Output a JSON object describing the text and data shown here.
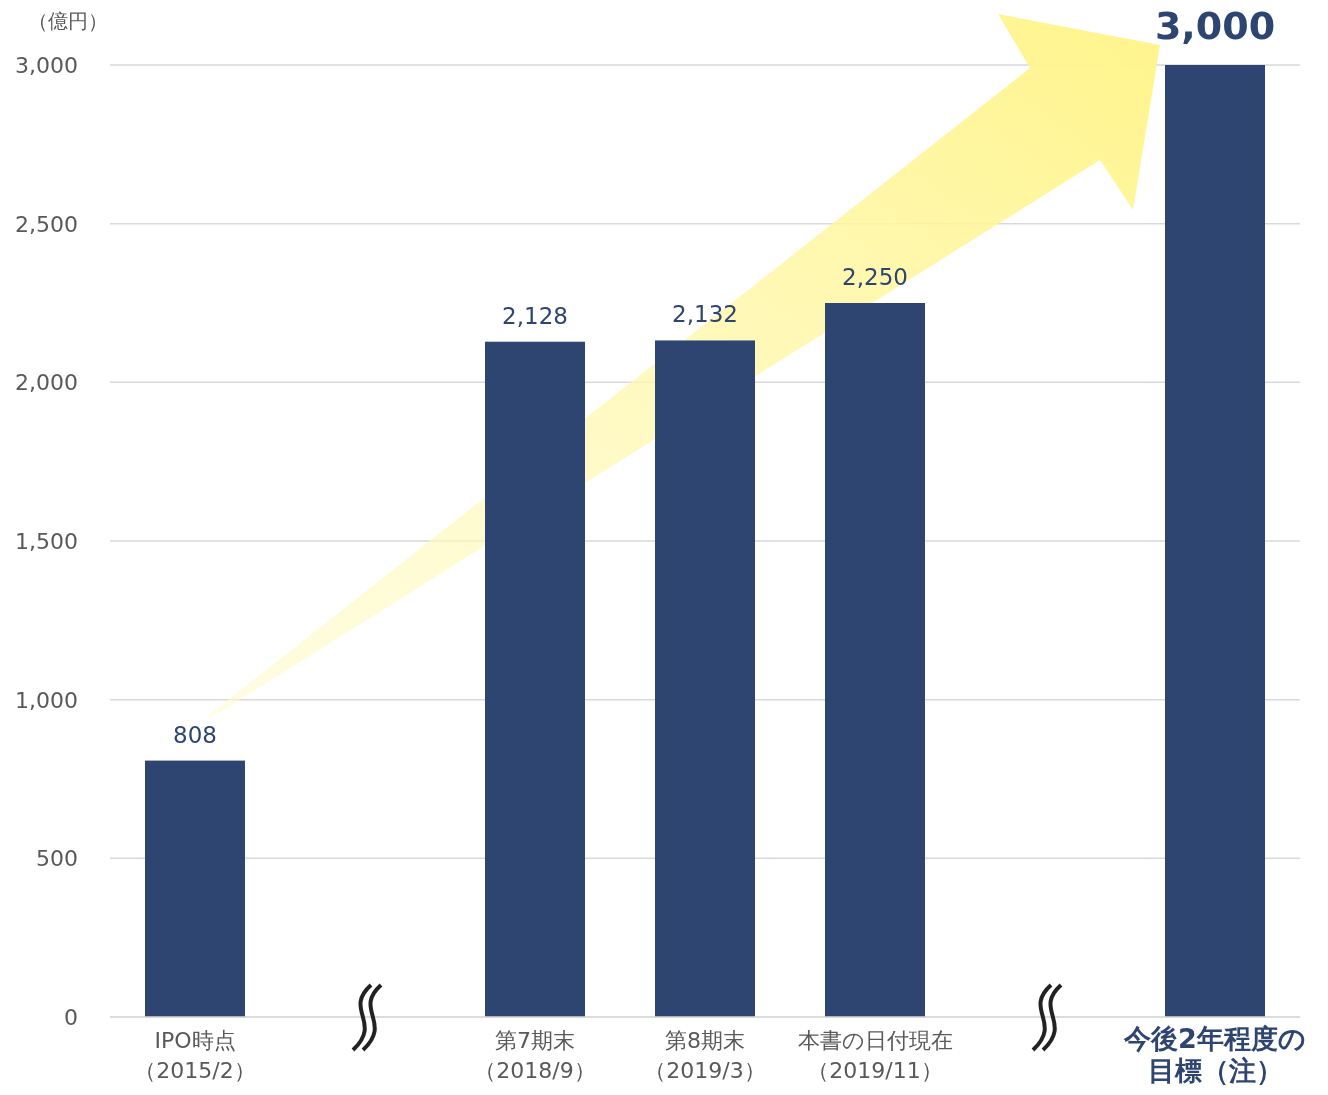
{
  "chart_data": {
    "type": "bar",
    "ylabel": "（億円）",
    "categories": [
      "IPO時点（2015/2）",
      null,
      "第7期末（2018/9）",
      "第8期末（2019/3）",
      "本書の日付現在（2019/11）",
      null,
      "今後2年程度の目標（注）"
    ],
    "values": [
      808,
      null,
      2128,
      2132,
      2250,
      null,
      3000
    ],
    "value_labels": [
      "808",
      null,
      "2,128",
      "2,132",
      "2,250",
      null,
      "3,000"
    ],
    "color": "#2e4572",
    "ylim": [
      0,
      3000
    ],
    "yticks": [
      0,
      500,
      {
        "value": 1000,
        "label": "1,000"
      },
      {
        "value": 1500,
        "label": "1,500"
      },
      {
        "value": 2000,
        "label": "2,000"
      },
      {
        "value": 2500,
        "label": "2,500"
      },
      {
        "value": 3000,
        "label": "3,000"
      }
    ],
    "grid": "y"
  }
}
